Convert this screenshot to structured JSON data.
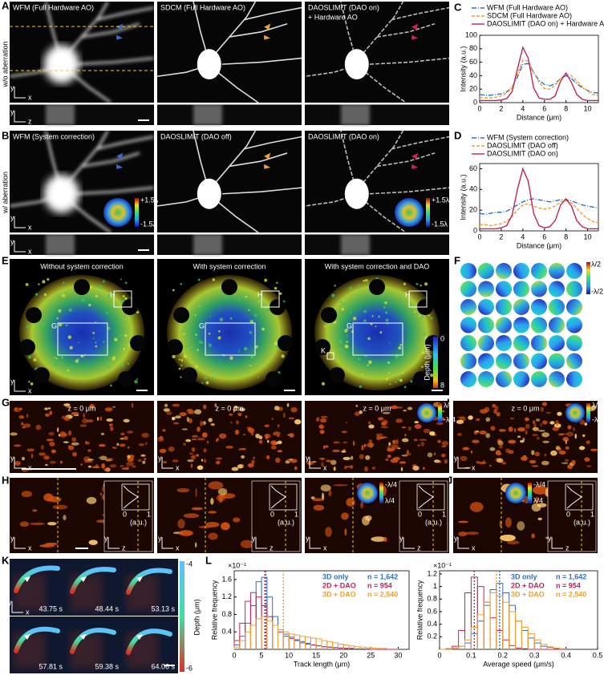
{
  "panels": {
    "A": {
      "letter": "A",
      "row_label": "w/o aberration",
      "titles": [
        "WFM (Full Hardware AO)",
        "SDCM (Full Hardware AO)",
        "DAOSLIMIT (DAO on)"
      ],
      "title_extra": "+ Hardware AO"
    },
    "B": {
      "letter": "B",
      "row_label": "w/ aberration",
      "titles": [
        "WFM (System correction)",
        "DAOSLIMIT (DAO off)",
        "DAOSLIMIT (DAO on)"
      ],
      "colorbar": [
        "+1.5λ",
        "-1.5λ"
      ]
    },
    "E": {
      "letter": "E",
      "titles": [
        "Without system correction",
        "With system correction",
        "With system correction and DAO"
      ],
      "roi": [
        "H",
        "G",
        "K"
      ],
      "colorbar_title": "Depth (μm)",
      "colorbar_ticks": [
        0,
        8
      ]
    },
    "F": {
      "letter": "F",
      "colorbar": [
        "λ/2",
        "-λ/2"
      ]
    },
    "G": {
      "letter": "G",
      "depth": "z = 0 μm",
      "colorbar": [
        "λ/4",
        "-λ/4"
      ]
    },
    "I": {
      "letter": "I"
    },
    "H": {
      "letter": "H",
      "profile_unit": "(a.u.)",
      "profile_ticks": [
        0,
        1
      ],
      "colorbar": [
        "-λ/4",
        "λ/4"
      ]
    },
    "J": {
      "letter": "J"
    },
    "K": {
      "letter": "K",
      "times": [
        "43.75 s",
        "48.44 s",
        "53.13 s",
        "57.81 s",
        "59.38 s",
        "64.06 s"
      ],
      "colorbar_title": "Depth (μm)",
      "colorbar_ticks": [
        -4,
        -6
      ]
    },
    "axes": {
      "x": "x",
      "y": "y",
      "z": "z"
    }
  },
  "chart_data": [
    {
      "type": "line",
      "panel": "C",
      "xlabel": "Distance (μm)",
      "ylabel": "Intensity (a.u.)",
      "x": [
        0,
        0.5,
        1,
        1.5,
        2,
        2.5,
        3,
        3.5,
        4,
        4.5,
        5,
        5.5,
        6,
        6.5,
        7,
        7.5,
        8,
        8.5,
        9,
        9.5,
        10,
        10.5,
        11
      ],
      "xlim": [
        0,
        11
      ],
      "xticks": [
        0,
        2,
        4,
        6,
        8,
        10
      ],
      "ylim": [
        0,
        100
      ],
      "yticks": [
        0,
        20,
        40,
        60,
        80,
        100
      ],
      "series": [
        {
          "name": "WFM (Full Hardware AO)",
          "color": "#2f6fc6",
          "style": "dash-dot",
          "values": [
            12,
            11,
            11,
            12,
            13,
            16,
            22,
            38,
            57,
            58,
            45,
            33,
            27,
            25,
            28,
            36,
            40,
            36,
            28,
            22,
            18,
            15,
            14
          ]
        },
        {
          "name": "SDCM (Full Hardware AO)",
          "color": "#f0a030",
          "style": "dashed",
          "values": [
            8,
            7,
            7,
            8,
            10,
            14,
            22,
            42,
            63,
            62,
            45,
            30,
            21,
            20,
            26,
            36,
            42,
            40,
            32,
            24,
            17,
            12,
            10
          ]
        },
        {
          "name": "DAOSLIMIT (DAO on) + Hardware AO",
          "color": "#c0245a",
          "style": "solid",
          "values": [
            3,
            3,
            3,
            3,
            4,
            6,
            16,
            50,
            82,
            66,
            22,
            7,
            5,
            5,
            10,
            32,
            44,
            30,
            12,
            5,
            3,
            3,
            3
          ]
        }
      ]
    },
    {
      "type": "line",
      "panel": "D",
      "xlabel": "Distance (μm)",
      "ylabel": "Intensity (a.u.)",
      "x": [
        0,
        0.5,
        1,
        1.5,
        2,
        2.5,
        3,
        3.5,
        4,
        4.5,
        5,
        5.5,
        6,
        6.5,
        7,
        7.5,
        8,
        8.5,
        9,
        9.5,
        10,
        10.5,
        11
      ],
      "xlim": [
        0,
        11
      ],
      "xticks": [
        0,
        2,
        4,
        6,
        8,
        10
      ],
      "ylim": [
        0,
        65
      ],
      "yticks": [
        0,
        20,
        40,
        60
      ],
      "series": [
        {
          "name": "WFM (System correction)",
          "color": "#2f6fc6",
          "style": "dash-dot",
          "values": [
            17,
            16,
            17,
            18,
            18,
            19,
            22,
            25,
            28,
            30,
            31,
            30,
            29,
            28,
            29,
            30,
            30,
            29,
            27,
            25,
            24,
            23,
            22
          ]
        },
        {
          "name": "DAOSLIMIT (DAO off)",
          "color": "#f0a030",
          "style": "dashed",
          "values": [
            6,
            6,
            5,
            6,
            7,
            9,
            14,
            20,
            25,
            26,
            24,
            22,
            21,
            22,
            24,
            28,
            29,
            27,
            22,
            16,
            12,
            9,
            8
          ]
        },
        {
          "name": "DAOSLIMIT (DAO on)",
          "color": "#c0245a",
          "style": "solid",
          "values": [
            2,
            2,
            2,
            2,
            3,
            5,
            15,
            40,
            60,
            48,
            17,
            5,
            3,
            4,
            10,
            25,
            31,
            24,
            10,
            4,
            2,
            2,
            2
          ]
        }
      ]
    },
    {
      "type": "histogram",
      "panel": "L",
      "xlabel": "Track length (μm)",
      "ylabel": "Relative frequency",
      "y_multiplier": "×10⁻¹",
      "bins": [
        0,
        1,
        2,
        3,
        4,
        5,
        6,
        7,
        8,
        9,
        10,
        11,
        12,
        13,
        14,
        15,
        16,
        17,
        18,
        19,
        20,
        21,
        22,
        23,
        24,
        25,
        26,
        27,
        28,
        29,
        30
      ],
      "xlim": [
        0,
        32
      ],
      "xticks": [
        0,
        5,
        10,
        15,
        20,
        25,
        30
      ],
      "ylim": [
        0,
        1.8
      ],
      "yticks": [
        0.4,
        0.8,
        1.2,
        1.6
      ],
      "series": [
        {
          "name": "3D only",
          "n_label": "n = 1,642",
          "color": "#2f6fc6",
          "mean": 5.8,
          "values": [
            0.1,
            0.3,
            0.6,
            1.0,
            1.55,
            1.65,
            1.2,
            0.75,
            0.45,
            0.35,
            0.28,
            0.22,
            0.18,
            0.14,
            0.1,
            0.08,
            0.06,
            0.05,
            0.04,
            0.03,
            0.02,
            0.02,
            0.01,
            0.01,
            0.01,
            0,
            0,
            0,
            0,
            0
          ]
        },
        {
          "name": "2D + DAO",
          "n_label": "n = 954",
          "color": "#c0245a",
          "mean": 5.6,
          "values": [
            0.2,
            0.6,
            1.1,
            1.3,
            1.2,
            1.0,
            0.75,
            0.55,
            0.4,
            0.3,
            0.25,
            0.2,
            0.15,
            0.12,
            0.1,
            0.08,
            0.06,
            0.05,
            0.04,
            0.03,
            0.02,
            0.02,
            0.01,
            0.01,
            0,
            0,
            0,
            0,
            0,
            0
          ]
        },
        {
          "name": "3D + DAO",
          "n_label": "n = 2,540",
          "color": "#f0a030",
          "mean": 9.0,
          "values": [
            0.05,
            0.2,
            0.4,
            0.55,
            0.7,
            0.75,
            0.65,
            0.55,
            0.45,
            0.4,
            0.35,
            0.33,
            0.3,
            0.28,
            0.26,
            0.24,
            0.2,
            0.18,
            0.15,
            0.12,
            0.1,
            0.08,
            0.06,
            0.05,
            0.04,
            0.03,
            0.02,
            0.02,
            0.01,
            0.01
          ]
        }
      ]
    },
    {
      "type": "histogram",
      "xlabel": "Average speed (μm/s)",
      "ylabel": "Relative frequency",
      "y_multiplier": "×10⁻¹",
      "bins": [
        0,
        0.02,
        0.04,
        0.06,
        0.08,
        0.1,
        0.12,
        0.14,
        0.16,
        0.18,
        0.2,
        0.22,
        0.24,
        0.26,
        0.28,
        0.3,
        0.32,
        0.34,
        0.36,
        0.38,
        0.4
      ],
      "xlim": [
        0,
        0.5
      ],
      "xticks": [
        0,
        0.1,
        0.2,
        0.3,
        0.4,
        0.5
      ],
      "ylim": [
        0,
        1.25
      ],
      "yticks": [
        0.2,
        0.4,
        0.6,
        0.8,
        1.0,
        1.2
      ],
      "series": [
        {
          "name": "3D only",
          "n_label": "n = 1,642",
          "color": "#2f6fc6",
          "mean": 0.19,
          "values": [
            0,
            0,
            0.02,
            0.05,
            0.1,
            0.25,
            0.45,
            0.7,
            0.95,
            1.05,
            0.9,
            0.7,
            0.45,
            0.3,
            0.18,
            0.1,
            0.05,
            0.03,
            0.01,
            0
          ]
        },
        {
          "name": "2D + DAO",
          "n_label": "n = 954",
          "color": "#c0245a",
          "mean": 0.11,
          "values": [
            0,
            0.01,
            0.05,
            0.3,
            0.9,
            1.15,
            1.0,
            0.75,
            0.5,
            0.3,
            0.15,
            0.06,
            0.02,
            0.01,
            0,
            0,
            0,
            0,
            0,
            0
          ]
        },
        {
          "name": "3D + DAO",
          "n_label": "n = 2,540",
          "color": "#f0a030",
          "mean": 0.18,
          "values": [
            0,
            0,
            0.02,
            0.05,
            0.15,
            0.35,
            0.55,
            0.75,
            0.9,
            0.85,
            0.75,
            0.6,
            0.45,
            0.35,
            0.25,
            0.15,
            0.08,
            0.04,
            0.02,
            0.01
          ]
        }
      ]
    }
  ]
}
